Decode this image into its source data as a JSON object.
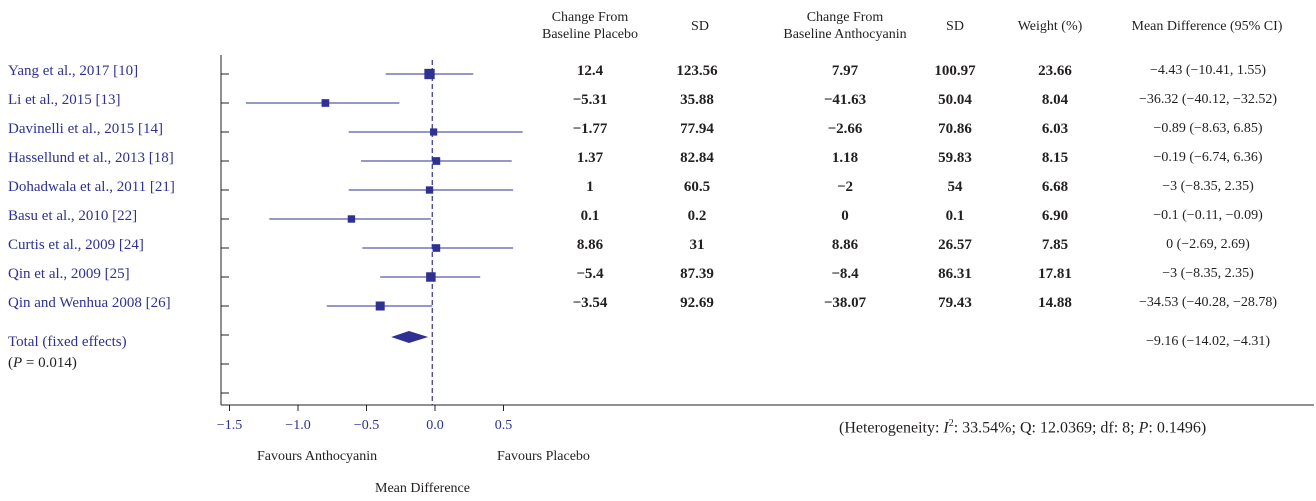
{
  "headers": {
    "placebo": [
      "Change From",
      "Baseline Placebo"
    ],
    "sd_placebo": "SD",
    "anthocyanin": [
      "Change From",
      "Baseline Anthocyanin"
    ],
    "sd_anthocyanin": "SD",
    "weight": "Weight (%)",
    "md": "Mean Difference (95% CI)"
  },
  "studies": [
    {
      "name": "Yang et al., 2017 [10]",
      "cp": "12.4",
      "sdp": "123.56",
      "ca": "7.97",
      "sda": "100.97",
      "w": "23.66",
      "ci": "−4.43 (−10.41, 1.55)"
    },
    {
      "name": "Li et al., 2015 [13]",
      "cp": "−5.31",
      "sdp": "35.88",
      "ca": "−41.63",
      "sda": "50.04",
      "w": "8.04",
      "ci": "−36.32 (−40.12, −32.52)"
    },
    {
      "name": "Davinelli et al., 2015 [14]",
      "cp": "−1.77",
      "sdp": "77.94",
      "ca": "−2.66",
      "sda": "70.86",
      "w": "6.03",
      "ci": "−0.89 (−8.63, 6.85)"
    },
    {
      "name": "Hassellund et al., 2013 [18]",
      "cp": "1.37",
      "sdp": "82.84",
      "ca": "1.18",
      "sda": "59.83",
      "w": "8.15",
      "ci": "−0.19 (−6.74, 6.36)"
    },
    {
      "name": "Dohadwala et al., 2011 [21]",
      "cp": "1",
      "sdp": "60.5",
      "ca": "−2",
      "sda": "54",
      "w": "6.68",
      "ci": "−3 (−8.35, 2.35)"
    },
    {
      "name": "Basu et al., 2010 [22]",
      "cp": "0.1",
      "sdp": "0.2",
      "ca": "0",
      "sda": "0.1",
      "w": "6.90",
      "ci": "−0.1 (−0.11, −0.09)"
    },
    {
      "name": "Curtis et al., 2009 [24]",
      "cp": "8.86",
      "sdp": "31",
      "ca": "8.86",
      "sda": "26.57",
      "w": "7.85",
      "ci": "0 (−2.69, 2.69)"
    },
    {
      "name": "Qin et al., 2009 [25]",
      "cp": "−5.4",
      "sdp": "87.39",
      "ca": "−8.4",
      "sda": "86.31",
      "w": "17.81",
      "ci": "−3 (−8.35, 2.35)"
    },
    {
      "name": "Qin and Wenhua 2008 [26]",
      "cp": "−3.54",
      "sdp": "92.69",
      "ca": "−38.07",
      "sda": "79.43",
      "w": "14.88",
      "ci": "−34.53 (−40.28, −28.78)"
    }
  ],
  "total": {
    "label": "Total (fixed effects)",
    "p_prefix": "(",
    "p_italic": "P",
    "p_rest": " = 0.014)",
    "ci": "−9.16 (−14.02, −4.31)"
  },
  "heterogeneity": {
    "prefix": "(Heterogeneity: ",
    "i_label": "I",
    "i_sup": "2",
    "mid": ": 33.54%; Q: 12.0369; df: 8; ",
    "p_italic": "P",
    "end": ": 0.1496)"
  },
  "labels": {
    "favours_left": "Favours Anthocyanin",
    "favours_right": "Favours Placebo",
    "xlabel": "Mean Difference"
  },
  "chart_data": {
    "type": "forest",
    "xlabel": "Mean Difference",
    "xlim": [
      -1.6,
      0.6
    ],
    "xticks": [
      -1.5,
      -1.0,
      -0.5,
      0.0,
      0.5
    ],
    "xtick_labels": [
      "−1.5",
      "−1.0",
      "−0.5",
      "0.0",
      "0.5"
    ],
    "reference_line": -0.02,
    "points": [
      {
        "name": "Yang et al., 2017 [10]",
        "est": -0.04,
        "lo": -0.36,
        "hi": 0.28,
        "weight": 23.66
      },
      {
        "name": "Li et al., 2015 [13]",
        "est": -0.8,
        "lo": -1.38,
        "hi": -0.26,
        "weight": 8.04
      },
      {
        "name": "Davinelli et al., 2015 [14]",
        "est": -0.01,
        "lo": -0.63,
        "hi": 0.64,
        "weight": 6.03
      },
      {
        "name": "Hassellund et al., 2013 [18]",
        "est": 0.01,
        "lo": -0.54,
        "hi": 0.56,
        "weight": 8.15
      },
      {
        "name": "Dohadwala et al., 2011 [21]",
        "est": -0.04,
        "lo": -0.63,
        "hi": 0.57,
        "weight": 6.68
      },
      {
        "name": "Basu et al., 2010 [22]",
        "est": -0.61,
        "lo": -1.21,
        "hi": -0.03,
        "weight": 6.9
      },
      {
        "name": "Curtis et al., 2009 [24]",
        "est": 0.01,
        "lo": -0.53,
        "hi": 0.57,
        "weight": 7.85
      },
      {
        "name": "Qin et al., 2009 [25]",
        "est": -0.03,
        "lo": -0.4,
        "hi": 0.33,
        "weight": 17.81
      },
      {
        "name": "Qin and Wenhua 2008 [26]",
        "est": -0.4,
        "lo": -0.79,
        "hi": -0.02,
        "weight": 14.88
      }
    ],
    "total": {
      "name": "Total (fixed effects)",
      "est": -0.19,
      "lo": -0.32,
      "hi": -0.05
    }
  }
}
